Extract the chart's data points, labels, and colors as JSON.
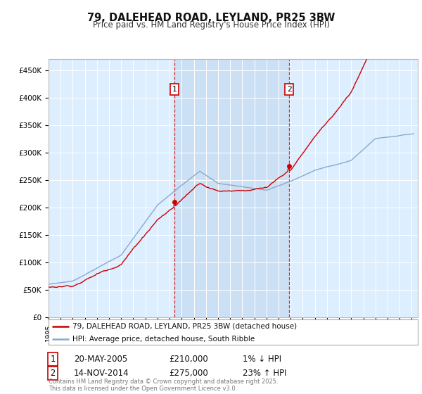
{
  "title1": "79, DALEHEAD ROAD, LEYLAND, PR25 3BW",
  "title2": "Price paid vs. HM Land Registry's House Price Index (HPI)",
  "ylim": [
    0,
    470000
  ],
  "xlim_start": 1995.0,
  "xlim_end": 2025.5,
  "background_color": "#ffffff",
  "plot_bg_color": "#ddeeff",
  "highlight_bg_color": "#cce0f5",
  "grid_color": "#ffffff",
  "line1_color": "#cc0000",
  "line2_color": "#88aacc",
  "sale1_x": 2005.38,
  "sale1_y": 210000,
  "sale1_label": "1",
  "sale1_date": "20-MAY-2005",
  "sale1_price": "£210,000",
  "sale1_hpi": "1% ↓ HPI",
  "sale2_x": 2014.87,
  "sale2_y": 275000,
  "sale2_label": "2",
  "sale2_date": "14-NOV-2014",
  "sale2_price": "£275,000",
  "sale2_hpi": "23% ↑ HPI",
  "legend_line1": "79, DALEHEAD ROAD, LEYLAND, PR25 3BW (detached house)",
  "legend_line2": "HPI: Average price, detached house, South Ribble",
  "footnote": "Contains HM Land Registry data © Crown copyright and database right 2025.\nThis data is licensed under the Open Government Licence v3.0."
}
